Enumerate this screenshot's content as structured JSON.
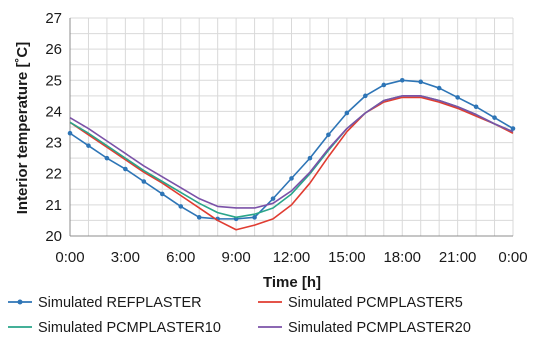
{
  "chart_data": {
    "type": "line",
    "title": "",
    "xlabel": "Time [h]",
    "ylabel": "Interior temperature [˚C]",
    "x": [
      0,
      1,
      2,
      3,
      4,
      5,
      6,
      7,
      8,
      9,
      10,
      11,
      12,
      13,
      14,
      15,
      16,
      17,
      18,
      19,
      20,
      21,
      22,
      23,
      24
    ],
    "xlim": [
      0,
      24
    ],
    "ylim": [
      20,
      27
    ],
    "x_ticks": [
      {
        "value": 0,
        "label": "0:00"
      },
      {
        "value": 3,
        "label": "3:00"
      },
      {
        "value": 6,
        "label": "6:00"
      },
      {
        "value": 9,
        "label": "9:00"
      },
      {
        "value": 12,
        "label": "12:00"
      },
      {
        "value": 15,
        "label": "15:00"
      },
      {
        "value": 18,
        "label": "18:00"
      },
      {
        "value": 21,
        "label": "21:00"
      },
      {
        "value": 24,
        "label": "0:00"
      }
    ],
    "y_ticks": [
      20,
      21,
      22,
      23,
      24,
      25,
      26,
      27
    ],
    "grid": true,
    "legend_position": "bottom",
    "series": [
      {
        "name": "Simulated REFPLASTER",
        "color": "#2e75b6",
        "markers": true,
        "values": [
          23.3,
          22.9,
          22.5,
          22.15,
          21.75,
          21.35,
          20.95,
          20.6,
          20.55,
          20.55,
          20.6,
          21.2,
          21.85,
          22.5,
          23.25,
          23.95,
          24.5,
          24.85,
          25.0,
          24.95,
          24.75,
          24.45,
          24.15,
          23.8,
          23.45
        ]
      },
      {
        "name": "Simulated PCMPLASTER5",
        "color": "#e03c31",
        "markers": false,
        "values": [
          23.65,
          23.25,
          22.85,
          22.45,
          22.05,
          21.7,
          21.3,
          20.9,
          20.5,
          20.2,
          20.35,
          20.55,
          21.0,
          21.7,
          22.55,
          23.35,
          23.95,
          24.3,
          24.45,
          24.45,
          24.3,
          24.1,
          23.85,
          23.6,
          23.3
        ]
      },
      {
        "name": "Simulated PCMPLASTER10",
        "color": "#2aa58a",
        "markers": false,
        "values": [
          23.65,
          23.3,
          22.9,
          22.5,
          22.1,
          21.75,
          21.4,
          21.05,
          20.75,
          20.6,
          20.7,
          20.9,
          21.35,
          22.0,
          22.75,
          23.45,
          23.95,
          24.35,
          24.5,
          24.5,
          24.35,
          24.15,
          23.9,
          23.6,
          23.35
        ]
      },
      {
        "name": "Simulated PCMPLASTER20",
        "color": "#7b52a8",
        "markers": false,
        "values": [
          23.8,
          23.45,
          23.05,
          22.65,
          22.25,
          21.9,
          21.55,
          21.2,
          20.95,
          20.9,
          20.9,
          21.05,
          21.45,
          22.05,
          22.8,
          23.45,
          23.95,
          24.35,
          24.5,
          24.5,
          24.35,
          24.15,
          23.9,
          23.6,
          23.35
        ]
      }
    ]
  }
}
